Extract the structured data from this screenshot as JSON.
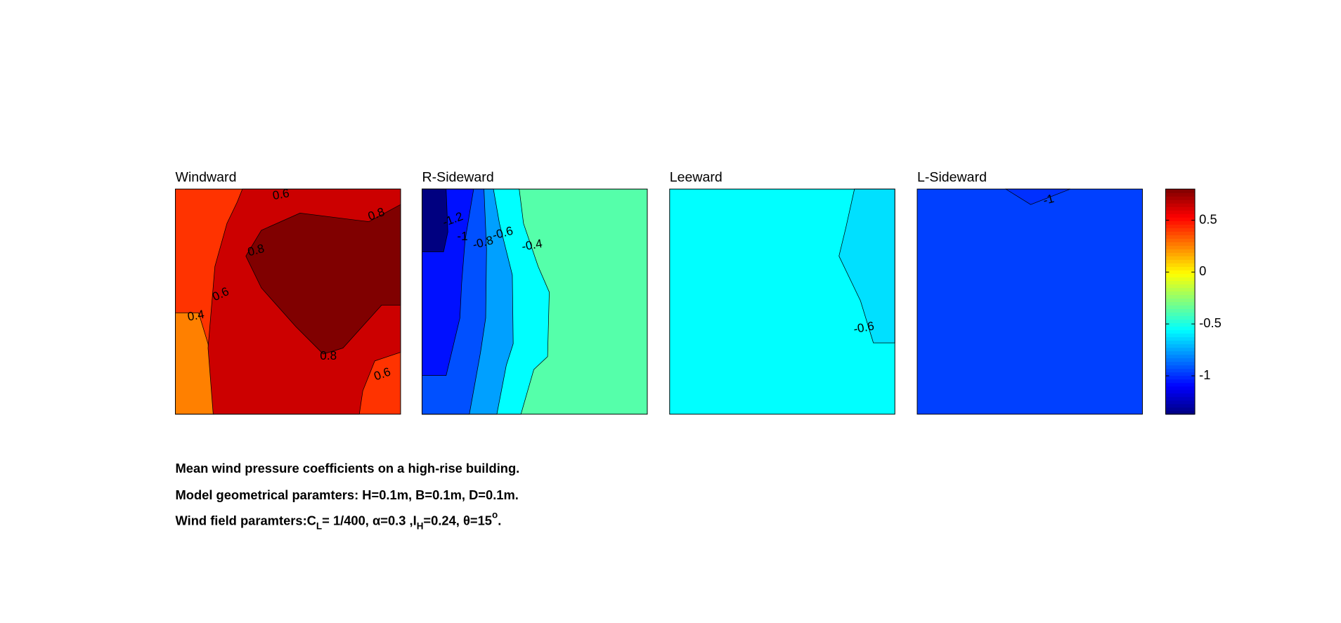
{
  "chart_data": [
    {
      "type": "contour",
      "title": "Windward",
      "fills": [
        "#ff3300",
        "#ff8000",
        "#cc0000",
        "#800000"
      ],
      "contour_labels": [
        0.6,
        0.8,
        0.8,
        0.6,
        0.4,
        0.8,
        0.6
      ]
    },
    {
      "type": "contour",
      "title": "R-Sideward",
      "fills": [
        "#55ffaa",
        "#00ffff",
        "#00a0ff",
        "#0050ff",
        "#0010ff",
        "#000080"
      ],
      "contour_labels": [
        -1.2,
        -1,
        -0.8,
        -0.6,
        -0.4
      ]
    },
    {
      "type": "contour",
      "title": "Leeward",
      "fills": [
        "#00ffff",
        "#00e0ff"
      ],
      "contour_labels": [
        -0.6
      ]
    },
    {
      "type": "contour",
      "title": "L-Sideward",
      "fills": [
        "#0040ff",
        "#0030ff"
      ],
      "contour_labels": [
        -1
      ]
    }
  ],
  "colorbar": {
    "colormap": "jet",
    "clim": [
      -1.37,
      0.8
    ],
    "ticks": [
      0.5,
      0,
      -0.5,
      -1
    ]
  },
  "caption": {
    "line1": "Mean wind pressure coefficients on a high-rise building.",
    "line2": "Model geometrical paramters: H=0.1m, B=0.1m, D=0.1m.",
    "line3": [
      "Wind field paramters:C",
      "L",
      "= 1/400, α=0.3 ,I",
      "H",
      "=0.24, θ=15",
      "o",
      "."
    ]
  }
}
